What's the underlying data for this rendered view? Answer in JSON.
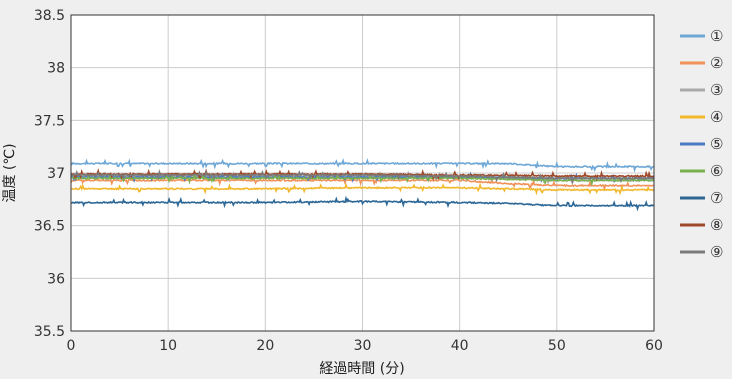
{
  "chart_data": {
    "type": "line",
    "xlabel": "経過時間 (分)",
    "ylabel": "温度 (℃)",
    "xlim": [
      0,
      60
    ],
    "ylim": [
      35.5,
      38.5
    ],
    "x_ticks": [
      "0",
      "10",
      "20",
      "30",
      "40",
      "50",
      "60"
    ],
    "y_ticks": [
      "35.5",
      "36",
      "36.5",
      "37",
      "37.5",
      "38",
      "38.5"
    ],
    "grid": true,
    "legend_position": "right",
    "series": [
      {
        "name": "①",
        "color": "#6fa8d6",
        "x": [
          0,
          10,
          20,
          30,
          40,
          45,
          50,
          60
        ],
        "y": [
          37.09,
          37.09,
          37.09,
          37.09,
          37.09,
          37.09,
          37.06,
          37.06
        ]
      },
      {
        "name": "②",
        "color": "#f0925a",
        "x": [
          0,
          10,
          20,
          30,
          40,
          45,
          50,
          60
        ],
        "y": [
          36.93,
          36.93,
          36.93,
          36.93,
          36.93,
          36.9,
          36.88,
          36.88
        ]
      },
      {
        "name": "③",
        "color": "#a9a9a9",
        "x": [
          0,
          10,
          20,
          30,
          40,
          45,
          50,
          60
        ],
        "y": [
          36.97,
          36.97,
          36.97,
          36.97,
          36.97,
          36.95,
          36.93,
          36.93
        ]
      },
      {
        "name": "④",
        "color": "#f2b92f",
        "x": [
          0,
          10,
          20,
          30,
          40,
          45,
          50,
          60
        ],
        "y": [
          36.85,
          36.85,
          36.85,
          36.86,
          36.86,
          36.85,
          36.84,
          36.84
        ]
      },
      {
        "name": "⑤",
        "color": "#4a79c6",
        "x": [
          0,
          10,
          20,
          30,
          40,
          45,
          50,
          60
        ],
        "y": [
          36.96,
          36.96,
          36.96,
          36.96,
          36.96,
          36.96,
          36.95,
          36.95
        ]
      },
      {
        "name": "⑥",
        "color": "#78b04e",
        "x": [
          0,
          10,
          20,
          30,
          40,
          45,
          50,
          60
        ],
        "y": [
          36.95,
          36.95,
          36.95,
          36.95,
          36.95,
          36.94,
          36.93,
          36.93
        ]
      },
      {
        "name": "⑦",
        "color": "#2c6796",
        "x": [
          0,
          10,
          20,
          30,
          40,
          45,
          50,
          60
        ],
        "y": [
          36.72,
          36.72,
          36.72,
          36.73,
          36.72,
          36.71,
          36.69,
          36.69
        ]
      },
      {
        "name": "⑧",
        "color": "#9f4a2a",
        "x": [
          0,
          10,
          20,
          30,
          40,
          45,
          50,
          60
        ],
        "y": [
          36.99,
          36.99,
          36.99,
          36.99,
          36.98,
          36.98,
          36.97,
          36.97
        ]
      },
      {
        "name": "⑨",
        "color": "#7b7b7b",
        "x": [
          0,
          10,
          20,
          30,
          40,
          45,
          50,
          60
        ],
        "y": [
          36.98,
          36.98,
          36.98,
          36.98,
          36.97,
          36.96,
          36.95,
          36.95
        ]
      }
    ]
  }
}
